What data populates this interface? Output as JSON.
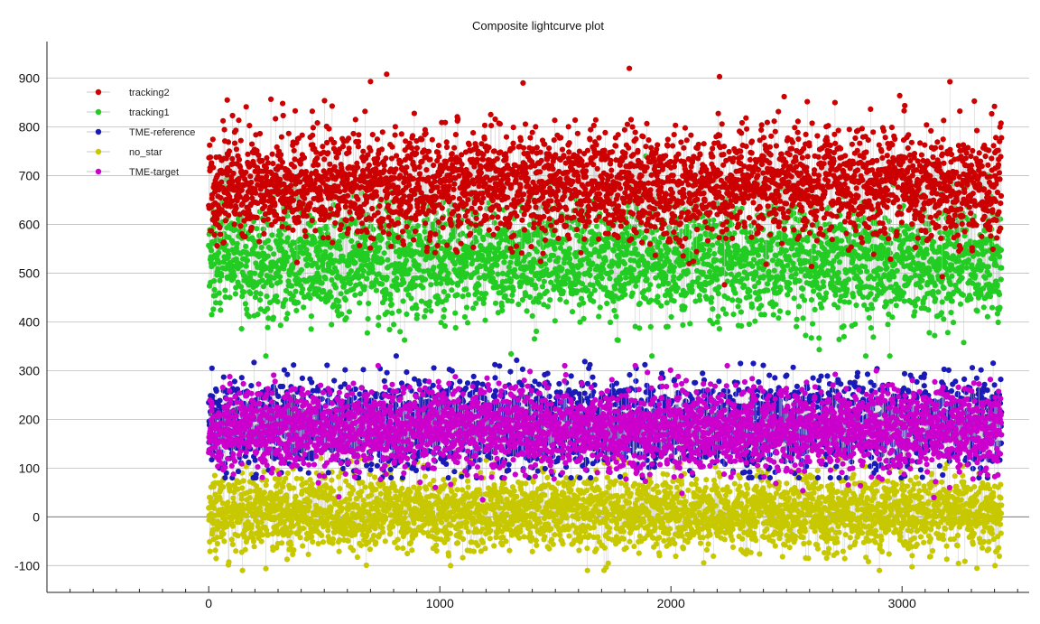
{
  "chart_data": {
    "type": "scatter",
    "title": "Composite lightcurve plot",
    "xlabel": "",
    "ylabel": "",
    "xlim": [
      -700,
      3550
    ],
    "ylim": [
      -155,
      975
    ],
    "x_ticks": [
      0,
      1000,
      2000,
      3000
    ],
    "y_ticks": [
      -100,
      0,
      100,
      200,
      300,
      400,
      500,
      600,
      700,
      800,
      900
    ],
    "grid": "horizontal",
    "connected": true,
    "legend_position": "top-left",
    "x_range_of_points": [
      0,
      3430
    ],
    "point_count_per_series": 3430,
    "series": [
      {
        "name": "tracking2",
        "color": "#cc0000",
        "mean": 680,
        "std": 55,
        "min": 410,
        "max": 920,
        "notable_max_points": [
          [
            80,
            855
          ],
          [
            320,
            848
          ],
          [
            700,
            893
          ],
          [
            770,
            908
          ],
          [
            1360,
            890
          ],
          [
            1820,
            920
          ],
          [
            2210,
            903
          ],
          [
            2490,
            862
          ],
          [
            2990,
            864
          ],
          [
            3400,
            842
          ]
        ]
      },
      {
        "name": "tracking1",
        "color": "#22cc22",
        "mean": 525,
        "std": 60,
        "min": 330,
        "max": 740
      },
      {
        "name": "TME-reference",
        "color": "#1a1ab8",
        "mean": 190,
        "std": 45,
        "min": 80,
        "max": 330
      },
      {
        "name": "no_star",
        "color": "#c8c800",
        "mean": 10,
        "std": 38,
        "min": -110,
        "max": 120
      },
      {
        "name": "TME-target",
        "color": "#cc00cc",
        "mean": 180,
        "std": 42,
        "min": 30,
        "max": 310
      }
    ]
  }
}
